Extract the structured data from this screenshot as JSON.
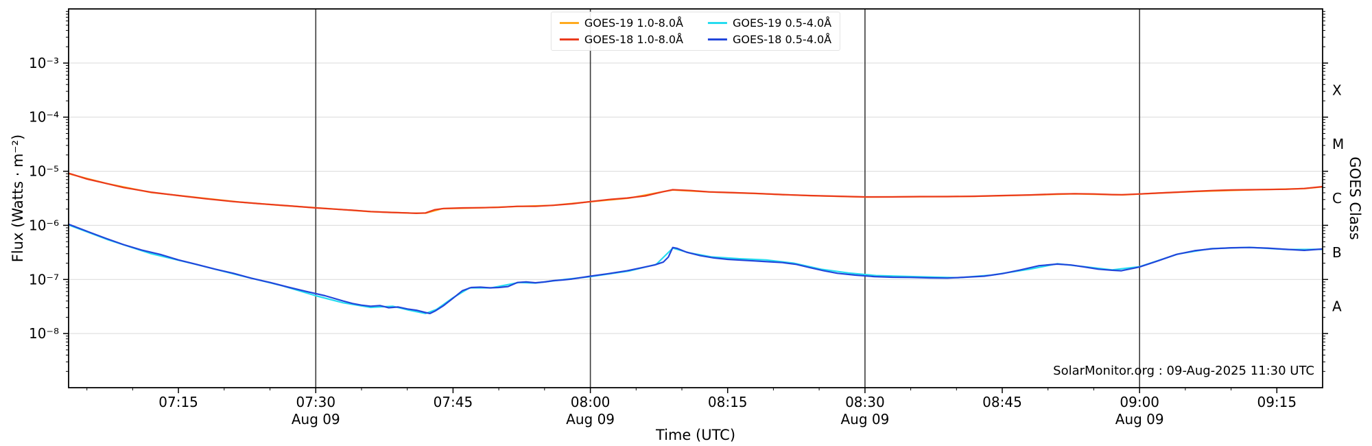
{
  "chart_data": {
    "type": "line",
    "title": "",
    "xlabel": "Time (UTC)",
    "ylabel": "Flux (Watts · m⁻²)",
    "ylabel_right": "GOES Class",
    "watermark": "SolarMonitor.org : 09-Aug-2025 11:30 UTC",
    "x_range_hours": [
      7.05,
      9.3333
    ],
    "y_log_range": [
      -9,
      -2
    ],
    "grid": true,
    "colors": {
      "grid": "#d9d9d9",
      "frame": "#000000",
      "day_marker": "#3a3a3a",
      "text": "#000000"
    },
    "y_major_ticks": [
      {
        "exp": -3,
        "label": "10⁻³"
      },
      {
        "exp": -4,
        "label": "10⁻⁴"
      },
      {
        "exp": -5,
        "label": "10⁻⁵"
      },
      {
        "exp": -6,
        "label": "10⁻⁶"
      },
      {
        "exp": -7,
        "label": "10⁻⁷"
      },
      {
        "exp": -8,
        "label": "10⁻⁸"
      }
    ],
    "goes_class_labels": [
      {
        "label": "X",
        "exp": -3.5
      },
      {
        "label": "M",
        "exp": -4.5
      },
      {
        "label": "C",
        "exp": -5.5
      },
      {
        "label": "B",
        "exp": -6.5
      },
      {
        "label": "A",
        "exp": -7.5
      }
    ],
    "x_major_ticks": [
      {
        "h": 7.25,
        "label": "07:15"
      },
      {
        "h": 7.5,
        "label": "07:30",
        "sublabel": "Aug 09"
      },
      {
        "h": 7.75,
        "label": "07:45"
      },
      {
        "h": 8.0,
        "label": "08:00",
        "sublabel": "Aug 09"
      },
      {
        "h": 8.25,
        "label": "08:15"
      },
      {
        "h": 8.5,
        "label": "08:30",
        "sublabel": "Aug 09"
      },
      {
        "h": 8.75,
        "label": "08:45"
      },
      {
        "h": 9.0,
        "label": "09:00",
        "sublabel": "Aug 09"
      },
      {
        "h": 9.25,
        "label": "09:15"
      }
    ],
    "x_minor_step_minutes": 5,
    "day_markers": [
      7.5,
      8.0,
      8.5,
      9.0
    ],
    "legend": {
      "position": "upper center",
      "entries": [
        {
          "label": "GOES-19 1.0-8.0Å",
          "color": "#ffaa1e"
        },
        {
          "label": "GOES-18 1.0-8.0Å",
          "color": "#ea3a1c"
        },
        {
          "label": "GOES-19 0.5-4.0Å",
          "color": "#25dcf0"
        },
        {
          "label": "GOES-18 0.5-4.0Å",
          "color": "#2146db"
        }
      ]
    },
    "series": [
      {
        "id": "goes19-long",
        "name": "GOES-19 1.0-8.0Å",
        "color": "#ffaa1e",
        "x": [
          7.05,
          7.12,
          7.2,
          7.28,
          7.36,
          7.44,
          7.52,
          7.6,
          7.67,
          7.7,
          7.73,
          7.8,
          7.87,
          7.93,
          8.0,
          8.07,
          8.13,
          8.15,
          8.22,
          8.3,
          8.4,
          8.5,
          8.6,
          8.7,
          8.8,
          8.88,
          8.97,
          9.03,
          9.1,
          9.2,
          9.3,
          9.333
        ],
        "y": [
          9e-06,
          5.9e-06,
          4.05e-06,
          3.3e-06,
          2.7e-06,
          2.33e-06,
          2.05e-06,
          1.79e-06,
          1.69e-06,
          1.68e-06,
          2.03e-06,
          2.11e-06,
          2.24e-06,
          2.34e-06,
          2.73e-06,
          3.18e-06,
          4.15e-06,
          4.5e-06,
          4.12e-06,
          3.88e-06,
          3.53e-06,
          3.33e-06,
          3.38e-06,
          3.43e-06,
          3.63e-06,
          3.82e-06,
          3.66e-06,
          3.93e-06,
          4.22e-06,
          4.52e-06,
          4.78e-06,
          5.15e-06
        ]
      },
      {
        "id": "goes19-short",
        "name": "GOES-19 0.5-4.0Å",
        "color": "#25dcf0",
        "x": [
          7.05,
          7.12,
          7.2,
          7.28,
          7.36,
          7.44,
          7.5,
          7.55,
          7.6,
          7.64,
          7.67,
          7.7,
          7.72,
          7.75,
          7.78,
          7.82,
          7.87,
          7.9,
          7.95,
          8.0,
          8.07,
          8.12,
          8.15,
          8.18,
          8.22,
          8.27,
          8.32,
          8.37,
          8.42,
          8.47,
          8.52,
          8.6,
          8.67,
          8.73,
          8.8,
          8.85,
          8.9,
          8.95,
          9.0,
          9.07,
          9.13,
          9.2,
          9.27,
          9.333
        ],
        "y": [
          1.02e-06,
          5.5e-07,
          3e-07,
          1.92e-07,
          1.2e-07,
          7.6e-08,
          5e-08,
          3.7e-08,
          3.05e-08,
          3.2e-08,
          2.7e-08,
          2.35e-08,
          2.8e-08,
          4.6e-08,
          7e-08,
          7e-08,
          8.8e-08,
          8.6e-08,
          9.9e-08,
          1.13e-07,
          1.43e-07,
          1.9e-07,
          3.8e-07,
          3.1e-07,
          2.62e-07,
          2.42e-07,
          2.3e-07,
          2e-07,
          1.55e-07,
          1.32e-07,
          1.18e-07,
          1.12e-07,
          1.08e-07,
          1.2e-07,
          1.55e-07,
          1.95e-07,
          1.72e-07,
          1.5e-07,
          1.72e-07,
          2.95e-07,
          3.72e-07,
          3.92e-07,
          3.58e-07,
          3.6e-07
        ]
      },
      {
        "id": "goes18-long",
        "name": "GOES-18 1.0-8.0Å",
        "color": "#ea3a1c",
        "x": [
          7.05,
          7.083,
          7.117,
          7.15,
          7.2,
          7.25,
          7.3,
          7.35,
          7.4,
          7.45,
          7.5,
          7.533,
          7.567,
          7.6,
          7.633,
          7.667,
          7.683,
          7.7,
          7.717,
          7.733,
          7.767,
          7.8,
          7.833,
          7.867,
          7.9,
          7.933,
          7.967,
          8.0,
          8.033,
          8.067,
          8.1,
          8.133,
          8.15,
          8.183,
          8.217,
          8.25,
          8.3,
          8.35,
          8.4,
          8.45,
          8.5,
          8.55,
          8.6,
          8.65,
          8.7,
          8.75,
          8.8,
          8.85,
          8.883,
          8.917,
          8.95,
          8.967,
          9.0,
          9.033,
          9.067,
          9.1,
          9.133,
          9.167,
          9.2,
          9.233,
          9.267,
          9.3,
          9.333
        ],
        "y": [
          9.2e-06,
          7.2e-06,
          6e-06,
          5e-06,
          4.1e-06,
          3.55e-06,
          3.1e-06,
          2.75e-06,
          2.5e-06,
          2.3e-06,
          2.1e-06,
          2e-06,
          1.9e-06,
          1.8e-06,
          1.74e-06,
          1.7e-06,
          1.67e-06,
          1.7e-06,
          1.95e-06,
          2.05e-06,
          2.1e-06,
          2.12e-06,
          2.15e-06,
          2.25e-06,
          2.25e-06,
          2.35e-06,
          2.5e-06,
          2.75e-06,
          3e-06,
          3.2e-06,
          3.5e-06,
          4.2e-06,
          4.55e-06,
          4.4e-06,
          4.15e-06,
          4.05e-06,
          3.9e-06,
          3.7e-06,
          3.55e-06,
          3.45e-06,
          3.35e-06,
          3.35e-06,
          3.4e-06,
          3.4e-06,
          3.45e-06,
          3.55e-06,
          3.65e-06,
          3.8e-06,
          3.85e-06,
          3.8e-06,
          3.7e-06,
          3.68e-06,
          3.8e-06,
          3.95e-06,
          4.1e-06,
          4.25e-06,
          4.4e-06,
          4.5e-06,
          4.55e-06,
          4.6e-06,
          4.65e-06,
          4.8e-06,
          5.2e-06
        ]
      },
      {
        "id": "goes18-short",
        "name": "GOES-18 0.5-4.0Å",
        "color": "#2146db",
        "x": [
          7.05,
          7.083,
          7.117,
          7.15,
          7.183,
          7.217,
          7.25,
          7.283,
          7.317,
          7.35,
          7.383,
          7.417,
          7.45,
          7.483,
          7.517,
          7.55,
          7.567,
          7.583,
          7.6,
          7.617,
          7.633,
          7.65,
          7.667,
          7.683,
          7.7,
          7.708,
          7.717,
          7.733,
          7.75,
          7.767,
          7.783,
          7.8,
          7.817,
          7.833,
          7.85,
          7.867,
          7.883,
          7.9,
          7.917,
          7.933,
          7.95,
          7.967,
          8.0,
          8.033,
          8.067,
          8.1,
          8.117,
          8.133,
          8.142,
          8.15,
          8.158,
          8.175,
          8.2,
          8.225,
          8.25,
          8.283,
          8.317,
          8.35,
          8.375,
          8.4,
          8.425,
          8.45,
          8.483,
          8.517,
          8.55,
          8.583,
          8.617,
          8.65,
          8.683,
          8.717,
          8.75,
          8.783,
          8.817,
          8.85,
          8.875,
          8.9,
          8.925,
          8.95,
          8.967,
          9.0,
          9.033,
          9.067,
          9.1,
          9.133,
          9.167,
          9.2,
          9.233,
          9.267,
          9.3,
          9.333
        ],
        "y": [
          1.05e-06,
          7.8e-07,
          5.8e-07,
          4.4e-07,
          3.5e-07,
          2.9e-07,
          2.3e-07,
          1.9e-07,
          1.55e-07,
          1.3e-07,
          1.05e-07,
          8.8e-08,
          7.2e-08,
          6e-08,
          5e-08,
          4e-08,
          3.6e-08,
          3.35e-08,
          3.2e-08,
          3.3e-08,
          3e-08,
          3.1e-08,
          2.85e-08,
          2.7e-08,
          2.45e-08,
          2.35e-08,
          2.6e-08,
          3.3e-08,
          4.5e-08,
          6.2e-08,
          7.1e-08,
          7.2e-08,
          7e-08,
          7.1e-08,
          7.4e-08,
          8.8e-08,
          9e-08,
          8.7e-08,
          9e-08,
          9.5e-08,
          9.8e-08,
          1.02e-07,
          1.15e-07,
          1.28e-07,
          1.45e-07,
          1.7e-07,
          1.85e-07,
          2.1e-07,
          2.6e-07,
          3.9e-07,
          3.75e-07,
          3.2e-07,
          2.75e-07,
          2.5e-07,
          2.35e-07,
          2.25e-07,
          2.15e-07,
          2.05e-07,
          1.9e-07,
          1.65e-07,
          1.45e-07,
          1.3e-07,
          1.2e-07,
          1.13e-07,
          1.1e-07,
          1.09e-07,
          1.07e-07,
          1.06e-07,
          1.1e-07,
          1.15e-07,
          1.28e-07,
          1.5e-07,
          1.8e-07,
          1.92e-07,
          1.85e-07,
          1.7e-07,
          1.55e-07,
          1.48e-07,
          1.45e-07,
          1.7e-07,
          2.2e-07,
          2.9e-07,
          3.4e-07,
          3.7e-07,
          3.85e-07,
          3.9e-07,
          3.8e-07,
          3.6e-07,
          3.45e-07,
          3.65e-07
        ]
      }
    ]
  }
}
